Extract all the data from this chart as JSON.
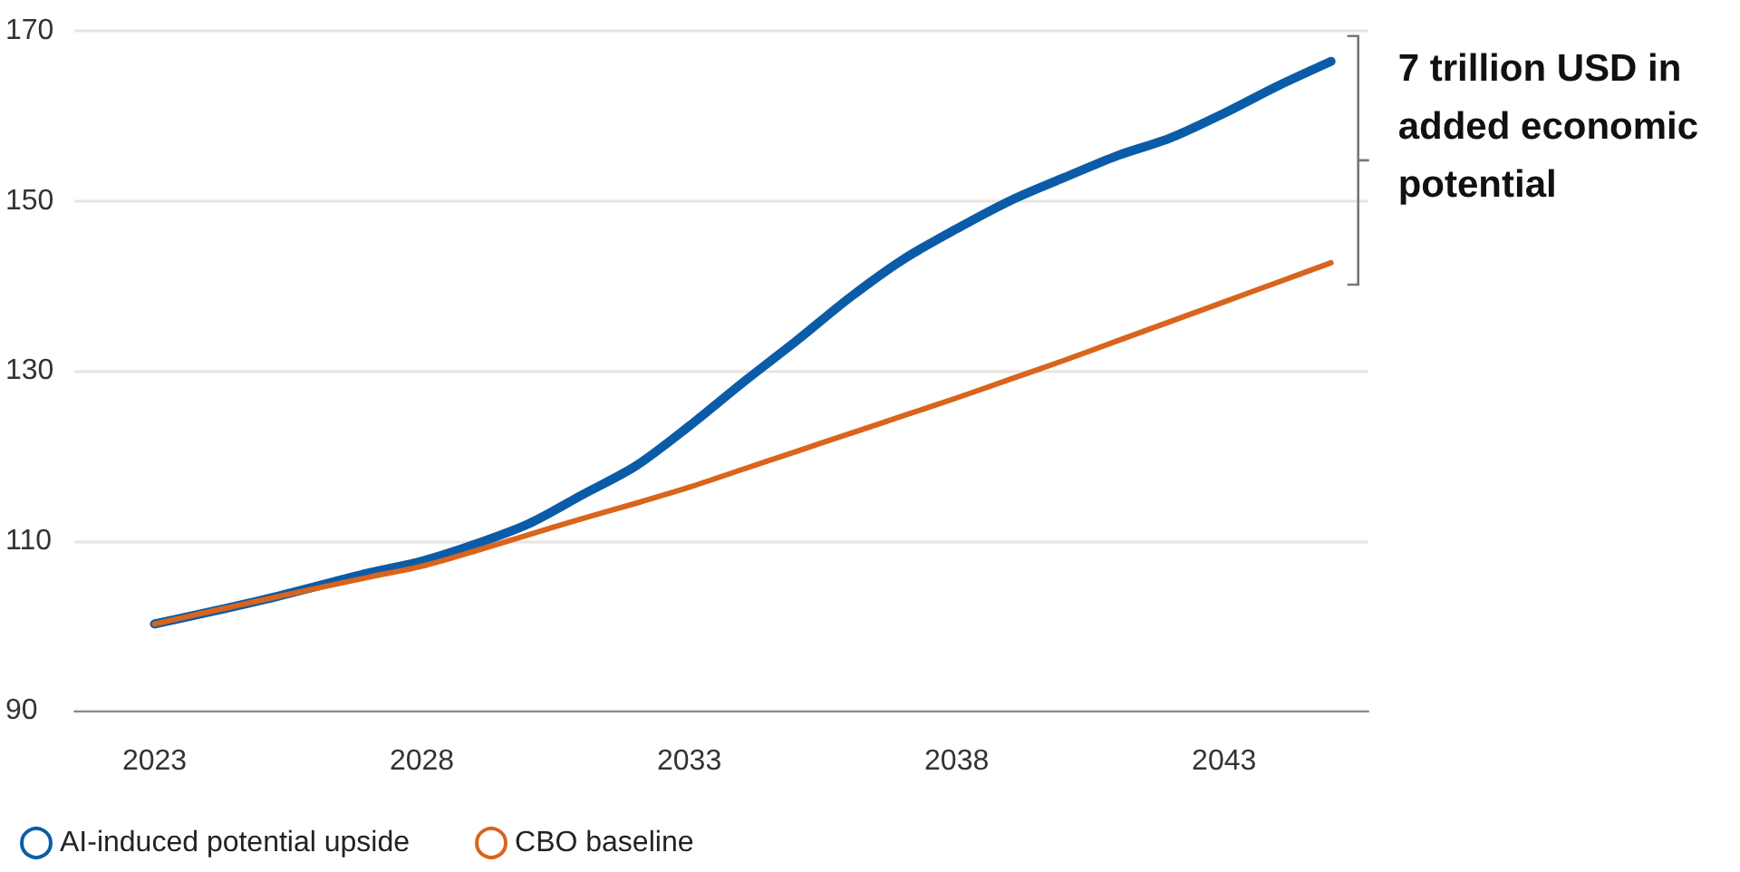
{
  "chart_data": {
    "type": "line",
    "x": [
      2023,
      2025,
      2027,
      2028,
      2029,
      2030,
      2031,
      2032,
      2033,
      2034,
      2035,
      2036,
      2037,
      2038,
      2039,
      2040,
      2041,
      2042,
      2043,
      2044,
      2045
    ],
    "series": [
      {
        "name": "AI-induced potential upside",
        "color": "#0b5ca8",
        "values": [
          100.2,
          103,
          106.2,
          107.6,
          109.6,
          112,
          115.4,
          118.8,
          123.5,
          128.6,
          133.5,
          138.6,
          143.1,
          146.7,
          150,
          152.7,
          155.3,
          157.4,
          160.3,
          163.5,
          166.4
        ]
      },
      {
        "name": "CBO baseline",
        "color": "#d9641c",
        "values": [
          100.2,
          103,
          105.7,
          107,
          108.8,
          110.7,
          112.6,
          114.4,
          116.3,
          118.4,
          120.5,
          122.6,
          124.7,
          126.8,
          129,
          131.2,
          133.5,
          135.8,
          138.1,
          140.4,
          142.7
        ]
      }
    ],
    "xlim": [
      2021.5,
      2045.7
    ],
    "xticks": [
      2023,
      2028,
      2033,
      2038,
      2043
    ],
    "ylim": [
      90,
      170
    ],
    "yticks": [
      90,
      110,
      130,
      150,
      170
    ],
    "annotations": [
      "7 trillion USD in\nadded economic\npotential"
    ],
    "grid": "y",
    "legend": "bottom left",
    "marker": "none",
    "line_style": "solid"
  }
}
